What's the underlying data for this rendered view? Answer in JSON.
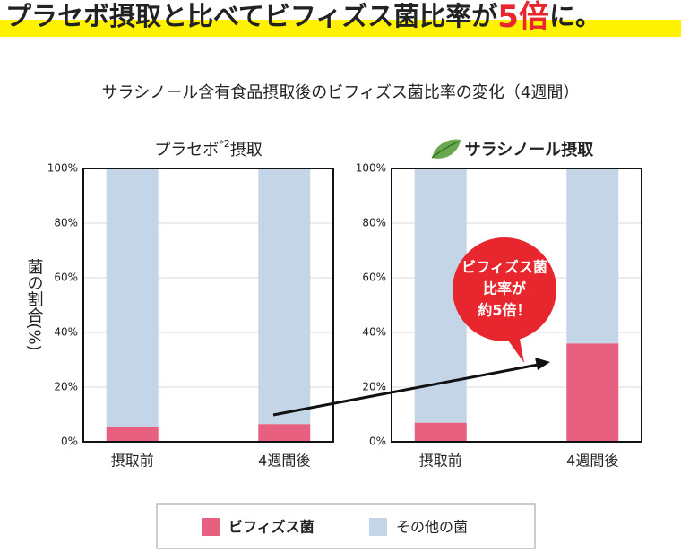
{
  "headline": {
    "parts": [
      "プラセボ摂取と比べてビフィズス菌比率が",
      "5倍",
      "に。"
    ]
  },
  "subtitle": "サラシノール含有食品摂取後のビフィズス菌比率の変化（4週間）",
  "chart_data": [
    {
      "type": "bar",
      "stacked": true,
      "title_parts": [
        "プラセボ",
        "*2",
        "摂取"
      ],
      "ylabel": "菌の割合(%)",
      "categories": [
        "摂取前",
        "4週間後"
      ],
      "series": [
        {
          "name": "ビフィズス菌",
          "color": "#e8607f",
          "values": [
            5.5,
            6.5
          ]
        },
        {
          "name": "その他の菌",
          "color": "#c5d5e8",
          "values": [
            94.5,
            93.5
          ]
        }
      ],
      "ylim": [
        0,
        100
      ],
      "yticks": [
        {
          "value": 0,
          "label": "0%"
        },
        {
          "value": 20,
          "label": "20%"
        },
        {
          "value": 40,
          "label": "40%"
        },
        {
          "value": 60,
          "label": "60%"
        },
        {
          "value": 80,
          "label": "80%"
        },
        {
          "value": 100,
          "label": "100%"
        }
      ],
      "grid": true
    },
    {
      "type": "bar",
      "stacked": true,
      "title_parts": [
        "サラシノール摂取"
      ],
      "categories": [
        "摂取前",
        "4週間後"
      ],
      "series": [
        {
          "name": "ビフィズス菌",
          "color": "#e8607f",
          "values": [
            7,
            36
          ]
        },
        {
          "name": "その他の菌",
          "color": "#c5d5e8",
          "values": [
            93,
            64
          ]
        }
      ],
      "ylim": [
        0,
        100
      ],
      "yticks": [
        {
          "value": 0,
          "label": "0%"
        },
        {
          "value": 20,
          "label": "20%"
        },
        {
          "value": 40,
          "label": "40%"
        },
        {
          "value": 60,
          "label": "60%"
        },
        {
          "value": 80,
          "label": "80%"
        },
        {
          "value": 100,
          "label": "100%"
        }
      ],
      "grid": true,
      "annotation": [
        "ビフィズス菌",
        "比率が",
        "約5倍！"
      ]
    }
  ]
}
